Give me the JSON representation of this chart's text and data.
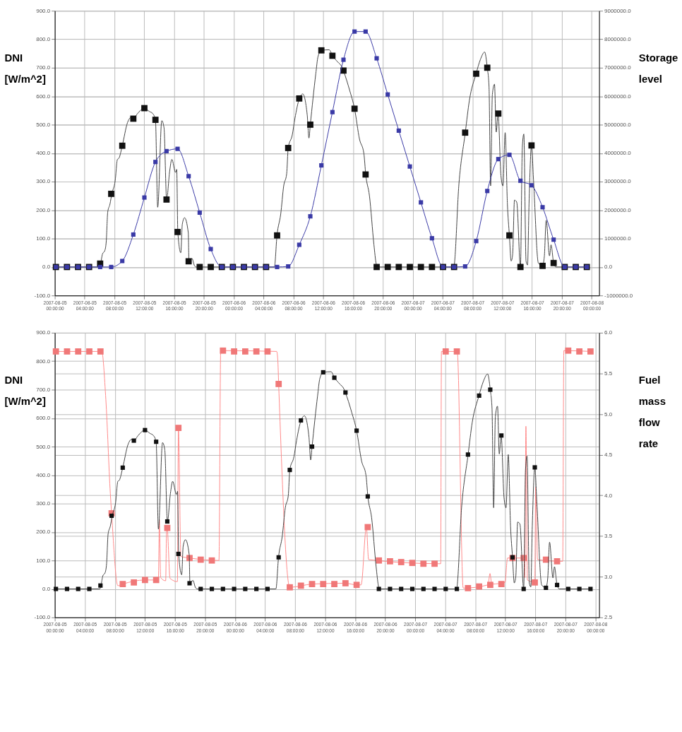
{
  "chart_data": [
    {
      "type": "line",
      "ylabel": "DNI [W/m^2]",
      "y2label": "Storage level",
      "grid": true,
      "xlim": [
        "2007-08-05T00:00",
        "2007-08-08T01:00"
      ],
      "xticks": [
        {
          "value": "2007-08-05T00:00",
          "label": "2007-08-05 00:00:00"
        },
        {
          "value": "2007-08-05T04:00",
          "label": "2007-08-05 04:00:00"
        },
        {
          "value": "2007-08-05T08:00",
          "label": "2007-08-05 08:00:00"
        },
        {
          "value": "2007-08-05T12:00",
          "label": "2007-08-05 12:00:00"
        },
        {
          "value": "2007-08-05T16:00",
          "label": "2007-08-05 16:00:00"
        },
        {
          "value": "2007-08-05T20:00",
          "label": "2007-08-05 20:00:00"
        },
        {
          "value": "2007-08-06T00:00",
          "label": "2007-08-06 00:00:00"
        },
        {
          "value": "2007-08-06T04:00",
          "label": "2007-08-06 04:00:00"
        },
        {
          "value": "2007-08-06T08:00",
          "label": "2007-08-06 08:00:00"
        },
        {
          "value": "2007-08-06T12:00",
          "label": "2007-08-06 12:00:00"
        },
        {
          "value": "2007-08-06T16:00",
          "label": "2007-08-06 16:00:00"
        },
        {
          "value": "2007-08-06T20:00",
          "label": "2007-08-06 20:00:00"
        },
        {
          "value": "2007-08-07T00:00",
          "label": "2007-08-07 00:00:00"
        },
        {
          "value": "2007-08-07T04:00",
          "label": "2007-08-07 04:00:00"
        },
        {
          "value": "2007-08-07T08:00",
          "label": "2007-08-07 08:00:00"
        },
        {
          "value": "2007-08-07T12:00",
          "label": "2007-08-07 12:00:00"
        },
        {
          "value": "2007-08-07T16:00",
          "label": "2007-08-07 16:00:00"
        },
        {
          "value": "2007-08-07T20:00",
          "label": "2007-08-07 20:00:00"
        },
        {
          "value": "2007-08-08T00:00",
          "label": "2007-08-08 00:00:00"
        }
      ],
      "ylim": [
        -100,
        900
      ],
      "yticks": [
        {
          "value": -100,
          "label": "-100.0"
        },
        {
          "value": 0,
          "label": "0.0"
        },
        {
          "value": 100,
          "label": "100.0"
        },
        {
          "value": 200,
          "label": "200.0"
        },
        {
          "value": 300,
          "label": "300.0"
        },
        {
          "value": 400,
          "label": "400.0"
        },
        {
          "value": 500,
          "label": "500.0"
        },
        {
          "value": 600,
          "label": "600.0"
        },
        {
          "value": 700,
          "label": "700.0"
        },
        {
          "value": 800,
          "label": "800.0"
        },
        {
          "value": 900,
          "label": "900.0"
        }
      ],
      "y2lim": [
        -1000000,
        9000000
      ],
      "y2ticks": [
        {
          "value": -1000000,
          "label": "-1000000.0"
        },
        {
          "value": 0,
          "label": "0.0"
        },
        {
          "value": 1000000,
          "label": "1000000.0"
        },
        {
          "value": 2000000,
          "label": "2000000.0"
        },
        {
          "value": 3000000,
          "label": "3000000.0"
        },
        {
          "value": 4000000,
          "label": "4000000.0"
        },
        {
          "value": 5000000,
          "label": "5000000.0"
        },
        {
          "value": 6000000,
          "label": "6000000.0"
        },
        {
          "value": 7000000,
          "label": "7000000.0"
        },
        {
          "value": 8000000,
          "label": "8000000.0"
        },
        {
          "value": 9000000,
          "label": "9000000.0"
        }
      ],
      "series": [
        {
          "color": "#444444",
          "x": [
            "2007-08-05T00:00",
            "2007-08-05T06:00",
            "2007-08-05T06:09",
            "2007-08-05T06:24",
            "2007-08-05T06:42",
            "2007-08-05T06:54",
            "2007-08-05T07:06",
            "2007-08-05T07:24",
            "2007-08-05T07:39",
            "2007-08-05T08:06",
            "2007-08-05T08:24",
            "2007-08-05T08:36",
            "2007-08-05T09:03",
            "2007-08-05T09:45",
            "2007-08-05T10:12",
            "2007-08-05T10:33",
            "2007-08-05T11:06",
            "2007-08-05T12:00",
            "2007-08-05T12:42",
            "2007-08-05T13:06",
            "2007-08-05T13:30",
            "2007-08-05T13:48",
            "2007-08-05T14:21",
            "2007-08-05T14:39",
            "2007-08-05T15:00",
            "2007-08-05T15:24",
            "2007-08-05T15:42",
            "2007-08-05T16:12",
            "2007-08-05T16:21",
            "2007-08-05T16:30",
            "2007-08-05T16:54",
            "2007-08-05T17:06",
            "2007-08-05T17:24",
            "2007-08-05T17:54",
            "2007-08-05T18:00",
            "2007-08-05T18:24",
            "2007-08-05T18:45",
            "2007-08-05T19:00",
            "2007-08-06T05:27",
            "2007-08-06T05:48",
            "2007-08-06T06:18",
            "2007-08-06T06:42",
            "2007-08-06T07:06",
            "2007-08-06T07:18",
            "2007-08-06T07:51",
            "2007-08-06T08:12",
            "2007-08-06T08:48",
            "2007-08-06T09:15",
            "2007-08-06T09:51",
            "2007-08-06T10:05",
            "2007-08-06T10:16",
            "2007-08-06T11:00",
            "2007-08-06T11:18",
            "2007-08-06T11:45",
            "2007-08-06T12:48",
            "2007-08-06T13:15",
            "2007-08-06T13:57",
            "2007-08-06T14:30",
            "2007-08-06T14:42",
            "2007-08-06T15:33",
            "2007-08-06T16:12",
            "2007-08-06T16:52",
            "2007-08-06T17:27",
            "2007-08-06T17:42",
            "2007-08-06T18:12",
            "2007-08-06T18:48",
            "2007-08-06T19:06",
            "2007-08-06T19:12",
            "2007-08-07T05:30",
            "2007-08-07T06:12",
            "2007-08-07T07:03",
            "2007-08-07T07:36",
            "2007-08-07T08:30",
            "2007-08-07T09:04",
            "2007-08-07T09:39",
            "2007-08-07T10:00",
            "2007-08-07T10:14",
            "2007-08-07T10:27",
            "2007-08-07T10:41",
            "2007-08-07T10:58",
            "2007-08-07T11:12",
            "2007-08-07T11:27",
            "2007-08-07T11:50",
            "2007-08-07T12:06",
            "2007-08-07T12:24",
            "2007-08-07T12:42",
            "2007-08-07T12:58",
            "2007-08-07T13:12",
            "2007-08-07T13:24",
            "2007-08-07T13:39",
            "2007-08-07T13:57",
            "2007-08-07T14:27",
            "2007-08-07T14:42",
            "2007-08-07T14:54",
            "2007-08-07T15:12",
            "2007-08-07T15:24",
            "2007-08-07T15:36",
            "2007-08-07T15:56",
            "2007-08-07T16:12",
            "2007-08-07T16:51",
            "2007-08-07T17:24",
            "2007-08-07T17:39",
            "2007-08-07T17:54",
            "2007-08-07T18:21",
            "2007-08-07T18:33",
            "2007-08-07T18:54",
            "2007-08-07T19:12",
            "2007-08-07T23:30"
          ],
          "values": [
            0,
            0,
            12,
            46,
            57,
            89,
            193,
            221,
            257,
            303,
            378,
            382,
            426,
            507,
            525,
            521,
            539,
            558,
            546,
            540,
            517,
            210,
            514,
            489,
            237,
            335,
            378,
            332,
            343,
            123,
            50,
            150,
            173,
            121,
            20,
            30,
            4,
            0,
            0,
            111,
            186,
            285,
            328,
            418,
            464,
            521,
            592,
            608,
            535,
            453,
            500,
            678,
            739,
            761,
            763,
            742,
            720,
            703,
            690,
            620,
            556,
            449,
            399,
            325,
            250,
            78,
            11,
            0,
            0,
            292,
            472,
            585,
            679,
            728,
            755,
            700,
            635,
            285,
            606,
            642,
            474,
            539,
            321,
            285,
            472,
            221,
            111,
            21,
            43,
            235,
            228,
            0,
            421,
            467,
            21,
            7,
            221,
            427,
            307,
            14,
            4,
            36,
            164,
            39,
            78,
            14,
            0,
            0
          ]
        },
        {
          "type": "scatter",
          "color": "#111111",
          "marker": "square",
          "x": [
            "2007-08-05T00:09",
            "2007-08-05T01:38",
            "2007-08-05T03:07",
            "2007-08-05T04:36",
            "2007-08-05T06:05",
            "2007-08-05T07:34",
            "2007-08-05T09:03",
            "2007-08-05T10:32",
            "2007-08-05T12:01",
            "2007-08-05T13:30",
            "2007-08-05T14:59",
            "2007-08-05T16:28",
            "2007-08-05T17:57",
            "2007-08-05T19:26",
            "2007-08-05T20:55",
            "2007-08-05T22:24",
            "2007-08-05T23:53",
            "2007-08-06T01:22",
            "2007-08-06T02:51",
            "2007-08-06T04:20",
            "2007-08-06T05:49",
            "2007-08-06T07:18",
            "2007-08-06T08:47",
            "2007-08-06T10:16",
            "2007-08-06T11:45",
            "2007-08-06T13:14",
            "2007-08-06T14:43",
            "2007-08-06T16:12",
            "2007-08-06T17:41",
            "2007-08-06T19:10",
            "2007-08-06T20:39",
            "2007-08-06T22:08",
            "2007-08-06T23:37",
            "2007-08-07T01:06",
            "2007-08-07T02:35",
            "2007-08-07T04:04",
            "2007-08-07T05:33",
            "2007-08-07T07:02",
            "2007-08-07T08:31",
            "2007-08-07T10:00",
            "2007-08-07T11:29",
            "2007-08-07T12:58",
            "2007-08-07T14:27",
            "2007-08-07T15:56",
            "2007-08-07T17:25",
            "2007-08-07T18:54",
            "2007-08-07T20:23",
            "2007-08-07T21:52",
            "2007-08-07T23:21"
          ],
          "values": [
            0,
            0,
            0,
            0,
            12,
            257,
            426,
            521,
            558,
            517,
            237,
            123,
            20,
            0,
            0,
            0,
            0,
            0,
            0,
            0,
            111,
            418,
            592,
            500,
            761,
            742,
            690,
            556,
            325,
            0,
            0,
            0,
            0,
            0,
            0,
            0,
            0,
            472,
            679,
            700,
            539,
            111,
            0,
            427,
            4,
            14,
            0,
            0,
            0
          ]
        },
        {
          "axis": "y2",
          "color": "#3a3aa6",
          "marker": "square",
          "x": [
            "2007-08-05T00:09",
            "2007-08-05T01:38",
            "2007-08-05T03:07",
            "2007-08-05T04:36",
            "2007-08-05T06:05",
            "2007-08-05T07:34",
            "2007-08-05T09:03",
            "2007-08-05T10:32",
            "2007-08-05T12:01",
            "2007-08-05T13:30",
            "2007-08-05T14:59",
            "2007-08-05T16:28",
            "2007-08-05T17:57",
            "2007-08-05T19:26",
            "2007-08-05T20:55",
            "2007-08-05T22:24",
            "2007-08-05T23:53",
            "2007-08-06T01:22",
            "2007-08-06T02:51",
            "2007-08-06T04:20",
            "2007-08-06T05:49",
            "2007-08-06T07:18",
            "2007-08-06T08:47",
            "2007-08-06T10:16",
            "2007-08-06T11:45",
            "2007-08-06T13:14",
            "2007-08-06T14:43",
            "2007-08-06T16:12",
            "2007-08-06T17:41",
            "2007-08-06T19:10",
            "2007-08-06T20:39",
            "2007-08-06T22:08",
            "2007-08-06T23:37",
            "2007-08-07T01:06",
            "2007-08-07T02:35",
            "2007-08-07T04:04",
            "2007-08-07T05:33",
            "2007-08-07T07:02",
            "2007-08-07T08:31",
            "2007-08-07T10:00",
            "2007-08-07T11:29",
            "2007-08-07T12:58",
            "2007-08-07T14:27",
            "2007-08-07T15:56",
            "2007-08-07T17:25",
            "2007-08-07T18:54",
            "2007-08-07T20:23",
            "2007-08-07T21:52",
            "2007-08-07T23:21"
          ],
          "values": [
            0,
            0,
            0,
            0,
            0,
            0,
            210000,
            1140000,
            2440000,
            3690000,
            4070000,
            4150000,
            3190000,
            1910000,
            630000,
            0,
            0,
            0,
            0,
            0,
            0,
            20000,
            780000,
            1780000,
            3570000,
            5440000,
            7280000,
            8270000,
            8270000,
            7330000,
            6060000,
            4790000,
            3530000,
            2270000,
            1010000,
            0,
            0,
            20000,
            910000,
            2670000,
            3790000,
            3940000,
            3030000,
            2870000,
            2100000,
            960000,
            0,
            0,
            0
          ]
        }
      ]
    },
    {
      "type": "line",
      "ylabel": "DNI [W/m^2]",
      "y2label": "Fuel mass flow rate",
      "grid": true,
      "xlim": [
        "2007-08-05T00:00",
        "2007-08-08T00:30"
      ],
      "xticks": [
        {
          "value": "2007-08-05T00:00",
          "label": "2007-08-05 00:00:00"
        },
        {
          "value": "2007-08-05T04:00",
          "label": "2007-08-05 04:00:00"
        },
        {
          "value": "2007-08-05T08:00",
          "label": "2007-08-05 08:00:00"
        },
        {
          "value": "2007-08-05T12:00",
          "label": "2007-08-05 12:00:00"
        },
        {
          "value": "2007-08-05T16:00",
          "label": "2007-08-05 16:00:00"
        },
        {
          "value": "2007-08-05T20:00",
          "label": "2007-08-05 20:00:00"
        },
        {
          "value": "2007-08-06T00:00",
          "label": "2007-08-06 00:00:00"
        },
        {
          "value": "2007-08-06T04:00",
          "label": "2007-08-06 04:00:00"
        },
        {
          "value": "2007-08-06T08:00",
          "label": "2007-08-06 08:00:00"
        },
        {
          "value": "2007-08-06T12:00",
          "label": "2007-08-06 12:00:00"
        },
        {
          "value": "2007-08-06T16:00",
          "label": "2007-08-06 16:00:00"
        },
        {
          "value": "2007-08-06T20:00",
          "label": "2007-08-06 20:00:00"
        },
        {
          "value": "2007-08-07T00:00",
          "label": "2007-08-07 00:00:00"
        },
        {
          "value": "2007-08-07T04:00",
          "label": "2007-08-07 04:00:00"
        },
        {
          "value": "2007-08-07T08:00",
          "label": "2007-08-07 08:00:00"
        },
        {
          "value": "2007-08-07T12:00",
          "label": "2007-08-07 12:00:00"
        },
        {
          "value": "2007-08-07T16:00",
          "label": "2007-08-07 16:00:00"
        },
        {
          "value": "2007-08-07T20:00",
          "label": "2007-08-07 20:00:00"
        },
        {
          "value": "2007-08-08T00:00",
          "label": "2007-08-08 00:00:00"
        }
      ],
      "ylim": [
        -100,
        900
      ],
      "yticks": [
        {
          "value": -100,
          "label": "-100.0"
        },
        {
          "value": 0,
          "label": "0.0"
        },
        {
          "value": 100,
          "label": "100.0"
        },
        {
          "value": 200,
          "label": "200.0"
        },
        {
          "value": 300,
          "label": "300.0"
        },
        {
          "value": 400,
          "label": "400.0"
        },
        {
          "value": 500,
          "label": "500.0"
        },
        {
          "value": 600,
          "label": "600.0"
        },
        {
          "value": 700,
          "label": "700.0"
        },
        {
          "value": 800,
          "label": "800.0"
        },
        {
          "value": 900,
          "label": "900.0"
        }
      ],
      "y2lim": [
        2.5,
        6.0
      ],
      "y2ticks": [
        2.5,
        {
          "value": 3,
          "label": "3.0"
        },
        3.5,
        {
          "value": 4,
          "label": "4.0"
        },
        4.5,
        {
          "value": 5,
          "label": "5.0"
        },
        5.5,
        {
          "value": 6,
          "label": "6.0"
        }
      ],
      "series": [
        {
          "axis": "y2",
          "color": "#ff8a8a",
          "x": [
            "2007-08-05T00:09",
            "2007-08-05T06:15",
            "2007-08-05T06:48",
            "2007-08-05T07:24",
            "2007-08-05T07:34",
            "2007-08-05T08:24",
            "2007-08-05T09:03",
            "2007-08-05T12:00",
            "2007-08-05T13:48",
            "2007-08-05T13:56",
            "2007-08-05T14:06",
            "2007-08-05T14:46",
            "2007-08-05T14:54",
            "2007-08-05T14:59",
            "2007-08-05T15:21",
            "2007-08-05T16:20",
            "2007-08-05T16:28",
            "2007-08-05T16:48",
            "2007-08-05T18:00",
            "2007-08-05T21:52",
            "2007-08-05T22:06",
            "2007-08-06T05:33",
            "2007-08-06T05:42",
            "2007-08-06T05:49",
            "2007-08-06T07:18",
            "2007-08-06T10:18",
            "2007-08-06T14:42",
            "2007-08-06T16:12",
            "2007-08-06T16:48",
            "2007-08-06T17:30",
            "2007-08-06T17:48",
            "2007-08-07T03:24",
            "2007-08-07T03:30",
            "2007-08-07T05:36",
            "2007-08-07T06:24",
            "2007-08-07T09:42",
            "2007-08-07T09:58",
            "2007-08-07T10:12",
            "2007-08-07T11:58",
            "2007-08-07T12:18",
            "2007-08-07T14:30",
            "2007-08-07T14:36",
            "2007-08-07T14:45",
            "2007-08-07T14:57",
            "2007-08-07T15:56",
            "2007-08-07T16:03",
            "2007-08-07T16:18",
            "2007-08-07T19:39",
            "2007-08-07T19:48",
            "2007-08-07T23:21"
          ],
          "values": [
            5.77,
            5.77,
            5.18,
            4.02,
            3.78,
            2.89,
            2.91,
            2.96,
            2.96,
            3.7,
            2.99,
            2.95,
            3.62,
            3.6,
            2.98,
            2.94,
            4.83,
            3.25,
            3.23,
            3.2,
            5.78,
            5.77,
            5.67,
            5.37,
            2.87,
            2.91,
            2.92,
            2.9,
            2.9,
            3.61,
            3.21,
            3.16,
            5.77,
            5.77,
            2.86,
            2.9,
            3.04,
            2.91,
            2.93,
            3.23,
            3.23,
            2.99,
            4.85,
            2.96,
            2.93,
            4.1,
            3.21,
            3.19,
            5.78,
            5.77
          ]
        },
        {
          "type": "scatter",
          "axis": "y2",
          "color": "#f07878",
          "marker": "square",
          "x": [
            "2007-08-05T00:09",
            "2007-08-05T01:38",
            "2007-08-05T03:07",
            "2007-08-05T04:36",
            "2007-08-05T06:05",
            "2007-08-05T07:34",
            "2007-08-05T09:03",
            "2007-08-05T10:32",
            "2007-08-05T12:01",
            "2007-08-05T13:30",
            "2007-08-05T14:59",
            "2007-08-05T16:28",
            "2007-08-05T17:57",
            "2007-08-05T19:26",
            "2007-08-05T20:55",
            "2007-08-05T22:24",
            "2007-08-05T23:53",
            "2007-08-06T01:22",
            "2007-08-06T02:51",
            "2007-08-06T04:20",
            "2007-08-06T05:49",
            "2007-08-06T07:18",
            "2007-08-06T08:47",
            "2007-08-06T10:16",
            "2007-08-06T11:45",
            "2007-08-06T13:14",
            "2007-08-06T14:43",
            "2007-08-06T16:12",
            "2007-08-06T17:41",
            "2007-08-06T19:10",
            "2007-08-06T20:39",
            "2007-08-06T22:08",
            "2007-08-06T23:37",
            "2007-08-07T01:06",
            "2007-08-07T02:35",
            "2007-08-07T04:04",
            "2007-08-07T05:33",
            "2007-08-07T07:02",
            "2007-08-07T08:31",
            "2007-08-07T10:00",
            "2007-08-07T11:29",
            "2007-08-07T12:58",
            "2007-08-07T14:27",
            "2007-08-07T15:56",
            "2007-08-07T17:25",
            "2007-08-07T18:54",
            "2007-08-07T20:23",
            "2007-08-07T21:52",
            "2007-08-07T23:21"
          ],
          "values": [
            5.77,
            5.77,
            5.77,
            5.77,
            5.77,
            3.78,
            2.91,
            2.93,
            2.96,
            2.96,
            3.6,
            4.83,
            3.23,
            3.21,
            3.2,
            5.78,
            5.77,
            5.77,
            5.77,
            5.77,
            5.37,
            2.87,
            2.89,
            2.91,
            2.91,
            2.91,
            2.92,
            2.9,
            3.61,
            3.2,
            3.19,
            3.18,
            3.17,
            3.16,
            3.16,
            5.77,
            5.77,
            2.86,
            2.88,
            2.9,
            2.91,
            3.23,
            3.23,
            2.93,
            3.21,
            3.19,
            5.78,
            5.77,
            5.77
          ]
        },
        {
          "color": "#444444",
          "x": [
            "2007-08-05T00:00",
            "2007-08-05T06:00",
            "2007-08-05T06:09",
            "2007-08-05T06:24",
            "2007-08-05T06:42",
            "2007-08-05T06:54",
            "2007-08-05T07:06",
            "2007-08-05T07:24",
            "2007-08-05T07:39",
            "2007-08-05T08:06",
            "2007-08-05T08:24",
            "2007-08-05T08:36",
            "2007-08-05T09:03",
            "2007-08-05T09:45",
            "2007-08-05T10:12",
            "2007-08-05T10:33",
            "2007-08-05T11:06",
            "2007-08-05T12:00",
            "2007-08-05T12:42",
            "2007-08-05T13:06",
            "2007-08-05T13:30",
            "2007-08-05T13:48",
            "2007-08-05T14:21",
            "2007-08-05T14:39",
            "2007-08-05T15:00",
            "2007-08-05T15:24",
            "2007-08-05T15:42",
            "2007-08-05T16:12",
            "2007-08-05T16:21",
            "2007-08-05T16:30",
            "2007-08-05T16:54",
            "2007-08-05T17:06",
            "2007-08-05T17:24",
            "2007-08-05T17:54",
            "2007-08-05T18:00",
            "2007-08-05T18:24",
            "2007-08-05T18:45",
            "2007-08-05T19:00",
            "2007-08-06T05:27",
            "2007-08-06T05:48",
            "2007-08-06T06:18",
            "2007-08-06T06:42",
            "2007-08-06T07:06",
            "2007-08-06T07:18",
            "2007-08-06T07:51",
            "2007-08-06T08:12",
            "2007-08-06T08:48",
            "2007-08-06T09:15",
            "2007-08-06T09:51",
            "2007-08-06T10:05",
            "2007-08-06T10:16",
            "2007-08-06T11:00",
            "2007-08-06T11:18",
            "2007-08-06T11:45",
            "2007-08-06T12:48",
            "2007-08-06T13:15",
            "2007-08-06T13:57",
            "2007-08-06T14:30",
            "2007-08-06T14:42",
            "2007-08-06T15:33",
            "2007-08-06T16:12",
            "2007-08-06T16:52",
            "2007-08-06T17:27",
            "2007-08-06T17:42",
            "2007-08-06T18:12",
            "2007-08-06T18:48",
            "2007-08-06T19:06",
            "2007-08-06T19:12",
            "2007-08-07T05:30",
            "2007-08-07T06:12",
            "2007-08-07T07:03",
            "2007-08-07T07:36",
            "2007-08-07T08:30",
            "2007-08-07T09:04",
            "2007-08-07T09:39",
            "2007-08-07T10:00",
            "2007-08-07T10:14",
            "2007-08-07T10:27",
            "2007-08-07T10:41",
            "2007-08-07T10:58",
            "2007-08-07T11:12",
            "2007-08-07T11:27",
            "2007-08-07T11:50",
            "2007-08-07T12:06",
            "2007-08-07T12:24",
            "2007-08-07T12:42",
            "2007-08-07T12:58",
            "2007-08-07T13:12",
            "2007-08-07T13:24",
            "2007-08-07T13:39",
            "2007-08-07T13:57",
            "2007-08-07T14:27",
            "2007-08-07T14:42",
            "2007-08-07T14:54",
            "2007-08-07T15:12",
            "2007-08-07T15:24",
            "2007-08-07T15:36",
            "2007-08-07T15:56",
            "2007-08-07T16:12",
            "2007-08-07T16:51",
            "2007-08-07T17:24",
            "2007-08-07T17:39",
            "2007-08-07T17:54",
            "2007-08-07T18:21",
            "2007-08-07T18:33",
            "2007-08-07T18:54",
            "2007-08-07T19:12",
            "2007-08-07T23:30"
          ],
          "values": [
            0,
            0,
            12,
            46,
            57,
            89,
            193,
            221,
            257,
            303,
            378,
            382,
            426,
            507,
            525,
            521,
            539,
            558,
            546,
            540,
            517,
            210,
            514,
            489,
            237,
            335,
            378,
            332,
            343,
            123,
            50,
            150,
            173,
            121,
            20,
            30,
            4,
            0,
            0,
            111,
            186,
            285,
            328,
            418,
            464,
            521,
            592,
            608,
            535,
            453,
            500,
            678,
            739,
            761,
            763,
            742,
            720,
            703,
            690,
            620,
            556,
            449,
            399,
            325,
            250,
            78,
            11,
            0,
            0,
            292,
            472,
            585,
            679,
            728,
            755,
            700,
            635,
            285,
            606,
            642,
            474,
            539,
            321,
            285,
            472,
            221,
            111,
            21,
            43,
            235,
            228,
            0,
            421,
            467,
            21,
            7,
            221,
            427,
            307,
            14,
            4,
            36,
            164,
            39,
            78,
            14,
            0,
            0
          ]
        },
        {
          "type": "scatter",
          "color": "#111111",
          "marker": "square",
          "x": [
            "2007-08-05T00:09",
            "2007-08-05T01:38",
            "2007-08-05T03:07",
            "2007-08-05T04:36",
            "2007-08-05T06:05",
            "2007-08-05T07:34",
            "2007-08-05T09:03",
            "2007-08-05T10:32",
            "2007-08-05T12:01",
            "2007-08-05T13:30",
            "2007-08-05T14:59",
            "2007-08-05T16:28",
            "2007-08-05T17:57",
            "2007-08-05T19:26",
            "2007-08-05T20:55",
            "2007-08-05T22:24",
            "2007-08-05T23:53",
            "2007-08-06T01:22",
            "2007-08-06T02:51",
            "2007-08-06T04:20",
            "2007-08-06T05:49",
            "2007-08-06T07:18",
            "2007-08-06T08:47",
            "2007-08-06T10:16",
            "2007-08-06T11:45",
            "2007-08-06T13:14",
            "2007-08-06T14:43",
            "2007-08-06T16:12",
            "2007-08-06T17:41",
            "2007-08-06T19:10",
            "2007-08-06T20:39",
            "2007-08-06T22:08",
            "2007-08-06T23:37",
            "2007-08-07T01:06",
            "2007-08-07T02:35",
            "2007-08-07T04:04",
            "2007-08-07T05:33",
            "2007-08-07T07:02",
            "2007-08-07T08:31",
            "2007-08-07T10:00",
            "2007-08-07T11:29",
            "2007-08-07T12:58",
            "2007-08-07T14:27",
            "2007-08-07T15:56",
            "2007-08-07T17:25",
            "2007-08-07T18:54",
            "2007-08-07T20:23",
            "2007-08-07T21:52",
            "2007-08-07T23:21"
          ],
          "values": [
            0,
            0,
            0,
            0,
            12,
            257,
            426,
            521,
            558,
            517,
            237,
            123,
            20,
            0,
            0,
            0,
            0,
            0,
            0,
            0,
            111,
            418,
            592,
            500,
            761,
            742,
            690,
            556,
            325,
            0,
            0,
            0,
            0,
            0,
            0,
            0,
            0,
            472,
            679,
            700,
            539,
            111,
            0,
            427,
            4,
            14,
            0,
            0,
            0
          ]
        }
      ]
    }
  ]
}
